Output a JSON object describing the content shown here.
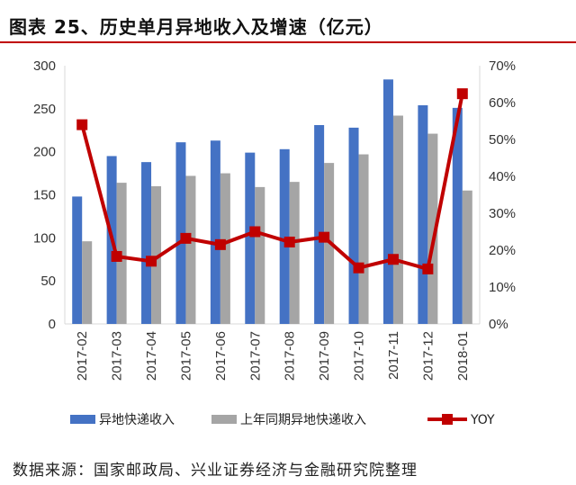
{
  "title": "图表 25、历史单月异地收入及增速（亿元）",
  "source": "数据来源：国家邮政局、兴业证券经济与金融研究院整理",
  "chart_data": {
    "type": "bar+line",
    "categories": [
      "2017-02",
      "2017-03",
      "2017-04",
      "2017-05",
      "2017-06",
      "2017-07",
      "2017-08",
      "2017-09",
      "2017-10",
      "2017-11",
      "2017-12",
      "2018-01"
    ],
    "series": [
      {
        "name": "异地快递收入",
        "type": "bar",
        "axis": "left",
        "color": "#4472c4",
        "values": [
          148,
          195,
          188,
          211,
          213,
          199,
          203,
          231,
          228,
          284,
          254,
          251
        ]
      },
      {
        "name": "上年同期异地快递收入",
        "type": "bar",
        "axis": "left",
        "color": "#a5a5a5",
        "values": [
          96,
          164,
          160,
          172,
          175,
          159,
          165,
          187,
          197,
          242,
          221,
          155
        ]
      },
      {
        "name": "YOY",
        "type": "line",
        "axis": "right",
        "color": "#c00000",
        "values": [
          54.0,
          18.3,
          17.0,
          23.2,
          21.5,
          25.0,
          22.2,
          23.5,
          15.2,
          17.5,
          14.9,
          62.4
        ]
      }
    ],
    "ylim": [
      0,
      300
    ],
    "yticks": [
      "0",
      "50",
      "100",
      "150",
      "200",
      "250",
      "300"
    ],
    "y2lim": [
      0,
      70
    ],
    "y2ticks": [
      "0%",
      "10%",
      "20%",
      "30%",
      "40%",
      "50%",
      "60%",
      "70%"
    ],
    "legend": "bottom",
    "grid": false
  }
}
